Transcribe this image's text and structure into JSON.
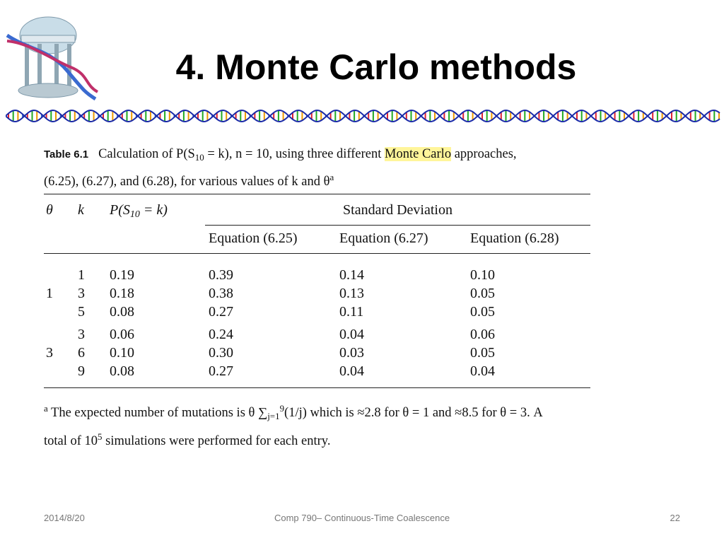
{
  "title": "4. Monte Carlo methods",
  "table": {
    "label": "Table 6.1",
    "caption": [
      "Calculation of P(S",
      "10",
      " = k), n = 10, using three different ",
      "Monte Carlo",
      " approaches, (6.25), (6.27), and (6.28), for various values of k and θ",
      "a"
    ],
    "header": {
      "theta": "θ",
      "k": "k",
      "prob": [
        "P(S",
        "10",
        " = k)"
      ],
      "group": "Standard Deviation",
      "equations": [
        "Equation (6.25)",
        "Equation (6.27)",
        "Equation (6.28)"
      ]
    },
    "groups": [
      {
        "theta": "1",
        "rows": [
          [
            "1",
            "0.19",
            "0.39",
            "0.14",
            "0.10"
          ],
          [
            "3",
            "0.18",
            "0.38",
            "0.13",
            "0.05"
          ],
          [
            "5",
            "0.08",
            "0.27",
            "0.11",
            "0.05"
          ]
        ]
      },
      {
        "theta": "3",
        "rows": [
          [
            "3",
            "0.06",
            "0.24",
            "0.04",
            "0.06"
          ],
          [
            "6",
            "0.10",
            "0.30",
            "0.03",
            "0.05"
          ],
          [
            "9",
            "0.08",
            "0.27",
            "0.04",
            "0.04"
          ]
        ]
      }
    ],
    "footnote": [
      "a",
      " The expected number of mutations is θ ∑",
      "j=1",
      "9",
      "(1/j) which is ≈2.8 for θ = 1 and ≈8.5 for θ = 3. A total of 10",
      "5",
      " simulations were performed for each entry."
    ]
  },
  "footer": {
    "date": "2014/8/20",
    "course": "Comp 790– Continuous-Time Coalescence",
    "page": "22"
  }
}
